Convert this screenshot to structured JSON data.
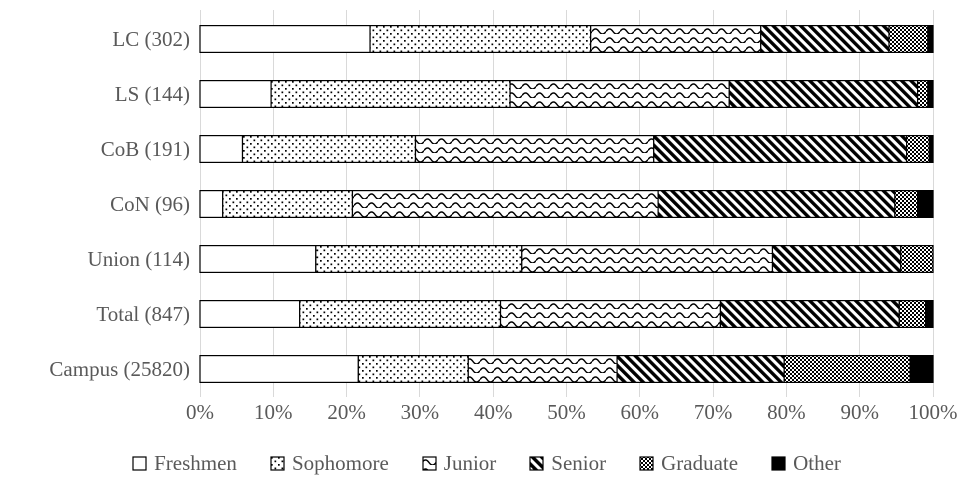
{
  "chart_data": {
    "type": "bar",
    "variant": "horizontal-stacked-100pct",
    "title": "",
    "xlabel": "",
    "ylabel": "",
    "categories": [
      "LC (302)",
      "LS (144)",
      "CoB (191)",
      "CoN (96)",
      "Union (114)",
      "Total (847)",
      "Campus (25820)"
    ],
    "series": [
      {
        "name": "Freshmen",
        "pattern": "plain",
        "values": [
          23.2,
          9.7,
          5.8,
          3.1,
          15.8,
          13.6,
          21.6
        ]
      },
      {
        "name": "Sophomore",
        "pattern": "dots",
        "values": [
          30.1,
          32.6,
          23.6,
          17.7,
          28.1,
          27.4,
          15.0
        ]
      },
      {
        "name": "Junior",
        "pattern": "waves",
        "values": [
          23.2,
          29.9,
          32.5,
          41.7,
          34.2,
          30.0,
          20.3
        ]
      },
      {
        "name": "Senior",
        "pattern": "diagonal",
        "values": [
          17.5,
          25.7,
          34.5,
          32.3,
          17.5,
          24.4,
          22.8
        ]
      },
      {
        "name": "Graduate",
        "pattern": "checker",
        "values": [
          5.3,
          1.4,
          3.1,
          3.1,
          4.4,
          3.6,
          17.2
        ]
      },
      {
        "name": "Other",
        "pattern": "solid",
        "values": [
          0.7,
          0.7,
          0.5,
          2.1,
          0.0,
          1.0,
          3.1
        ]
      }
    ],
    "xticks": [
      "0%",
      "10%",
      "20%",
      "30%",
      "40%",
      "50%",
      "60%",
      "70%",
      "80%",
      "90%",
      "100%"
    ],
    "xlim": [
      0,
      100
    ],
    "grid": true,
    "legend_position": "bottom",
    "colors": {
      "text": "#595959",
      "gridline": "#d9d9d9",
      "pattern": "#000000",
      "background": "#ffffff"
    }
  }
}
